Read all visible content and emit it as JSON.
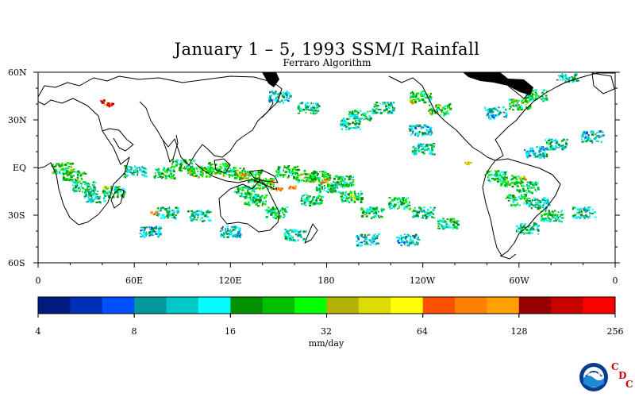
{
  "title": "January 1 – 5, 1993 SSM/I Rainfall",
  "subtitle": "Ferraro Algorithm",
  "lat_labels": [
    "60N",
    "30N",
    "EQ",
    "30S",
    "60S"
  ],
  "lon_labels": [
    "0",
    "60E",
    "120E",
    "180",
    "120W",
    "60W",
    "0"
  ],
  "colorbar": {
    "colors": [
      "#001a80",
      "#0030b8",
      "#0050ff",
      "#00999c",
      "#00c8c8",
      "#00ffff",
      "#009000",
      "#00c000",
      "#00ff00",
      "#b4b400",
      "#dcdc00",
      "#ffff00",
      "#ff5000",
      "#ff8000",
      "#ffa000",
      "#960000",
      "#c80000",
      "#ff0000"
    ],
    "tick_labels": [
      "4",
      "8",
      "16",
      "32",
      "64",
      "128",
      "256"
    ],
    "units": "mm/day"
  },
  "rain_bands": [
    {
      "lon": 330,
      "lat": 58,
      "cls": 5
    },
    {
      "lon": 310,
      "lat": 46,
      "cls": 6
    },
    {
      "lon": 300,
      "lat": 40,
      "cls": 7
    },
    {
      "lon": 285,
      "lat": 35,
      "cls": 4
    },
    {
      "lon": 250,
      "lat": 37,
      "cls": 7
    },
    {
      "lon": 238,
      "lat": 45,
      "cls": 6
    },
    {
      "lon": 215,
      "lat": 38,
      "cls": 5
    },
    {
      "lon": 200,
      "lat": 33,
      "cls": 6
    },
    {
      "lon": 195,
      "lat": 28,
      "cls": 5
    },
    {
      "lon": 168,
      "lat": 38,
      "cls": 5
    },
    {
      "lon": 150,
      "lat": 45,
      "cls": 4
    },
    {
      "lon": 345,
      "lat": 20,
      "cls": 4
    },
    {
      "lon": 323,
      "lat": 15,
      "cls": 5
    },
    {
      "lon": 238,
      "lat": 24,
      "cls": 4
    },
    {
      "lon": 240,
      "lat": 12,
      "cls": 5
    },
    {
      "lon": 310,
      "lat": 10,
      "cls": 4
    },
    {
      "lon": 15,
      "lat": 0,
      "cls": 7
    },
    {
      "lon": 22,
      "lat": -5,
      "cls": 7
    },
    {
      "lon": 28,
      "lat": -12,
      "cls": 6
    },
    {
      "lon": 35,
      "lat": -18,
      "cls": 5
    },
    {
      "lon": 47,
      "lat": -15,
      "cls": 6
    },
    {
      "lon": 60,
      "lat": -2,
      "cls": 5
    },
    {
      "lon": 78,
      "lat": -3,
      "cls": 6
    },
    {
      "lon": 90,
      "lat": 2,
      "cls": 6
    },
    {
      "lon": 100,
      "lat": -2,
      "cls": 7
    },
    {
      "lon": 112,
      "lat": 0,
      "cls": 7
    },
    {
      "lon": 122,
      "lat": -3,
      "cls": 7
    },
    {
      "lon": 132,
      "lat": -5,
      "cls": 7
    },
    {
      "lon": 140,
      "lat": -10,
      "cls": 7
    },
    {
      "lon": 128,
      "lat": -15,
      "cls": 6
    },
    {
      "lon": 135,
      "lat": -20,
      "cls": 6
    },
    {
      "lon": 148,
      "lat": -28,
      "cls": 6
    },
    {
      "lon": 155,
      "lat": -2,
      "cls": 7
    },
    {
      "lon": 165,
      "lat": -5,
      "cls": 7
    },
    {
      "lon": 175,
      "lat": -5,
      "cls": 7
    },
    {
      "lon": 180,
      "lat": -12,
      "cls": 6
    },
    {
      "lon": 170,
      "lat": -20,
      "cls": 6
    },
    {
      "lon": 190,
      "lat": -8,
      "cls": 6
    },
    {
      "lon": 195,
      "lat": -18,
      "cls": 6
    },
    {
      "lon": 208,
      "lat": -28,
      "cls": 6
    },
    {
      "lon": 225,
      "lat": -22,
      "cls": 6
    },
    {
      "lon": 240,
      "lat": -28,
      "cls": 5
    },
    {
      "lon": 255,
      "lat": -35,
      "cls": 6
    },
    {
      "lon": 285,
      "lat": -5,
      "cls": 6
    },
    {
      "lon": 295,
      "lat": -8,
      "cls": 7
    },
    {
      "lon": 305,
      "lat": -12,
      "cls": 6
    },
    {
      "lon": 298,
      "lat": -20,
      "cls": 6
    },
    {
      "lon": 312,
      "lat": -22,
      "cls": 5
    },
    {
      "lon": 320,
      "lat": -30,
      "cls": 6
    },
    {
      "lon": 340,
      "lat": -28,
      "cls": 5
    },
    {
      "lon": 80,
      "lat": -28,
      "cls": 5
    },
    {
      "lon": 100,
      "lat": -30,
      "cls": 5
    },
    {
      "lon": 70,
      "lat": -40,
      "cls": 4
    },
    {
      "lon": 120,
      "lat": -40,
      "cls": 4
    },
    {
      "lon": 160,
      "lat": -42,
      "cls": 5
    },
    {
      "lon": 205,
      "lat": -45,
      "cls": 4
    },
    {
      "lon": 230,
      "lat": -45,
      "cls": 4
    },
    {
      "lon": 305,
      "lat": -38,
      "cls": 5
    }
  ],
  "rain_cores": [
    {
      "lon": 40,
      "lat": 42,
      "cls": 16
    },
    {
      "lon": 43,
      "lat": 40,
      "cls": 14
    },
    {
      "lon": 45,
      "lat": 40,
      "cls": 17
    },
    {
      "lon": 150,
      "lat": -13,
      "cls": 13
    },
    {
      "lon": 158,
      "lat": -12,
      "cls": 12
    },
    {
      "lon": 145,
      "lat": -8,
      "cls": 10
    },
    {
      "lon": 127,
      "lat": -4,
      "cls": 11
    },
    {
      "lon": 268,
      "lat": 3,
      "cls": 10
    },
    {
      "lon": 105,
      "lat": -2,
      "cls": 9
    },
    {
      "lon": 42,
      "lat": -12,
      "cls": 10
    },
    {
      "lon": 232,
      "lat": 42,
      "cls": 10
    },
    {
      "lon": 72,
      "lat": -28,
      "cls": 12
    },
    {
      "lon": 302,
      "lat": -6,
      "cls": 10
    },
    {
      "lon": 178,
      "lat": -8,
      "cls": 11
    },
    {
      "lon": 196,
      "lat": -18,
      "cls": 10
    }
  ],
  "logos": {
    "noaa": "NOAA",
    "cdc": [
      "C",
      "D",
      "C"
    ]
  },
  "map_colors": {
    "coast": "#000000",
    "ice": "#000000",
    "background": "#ffffff"
  }
}
